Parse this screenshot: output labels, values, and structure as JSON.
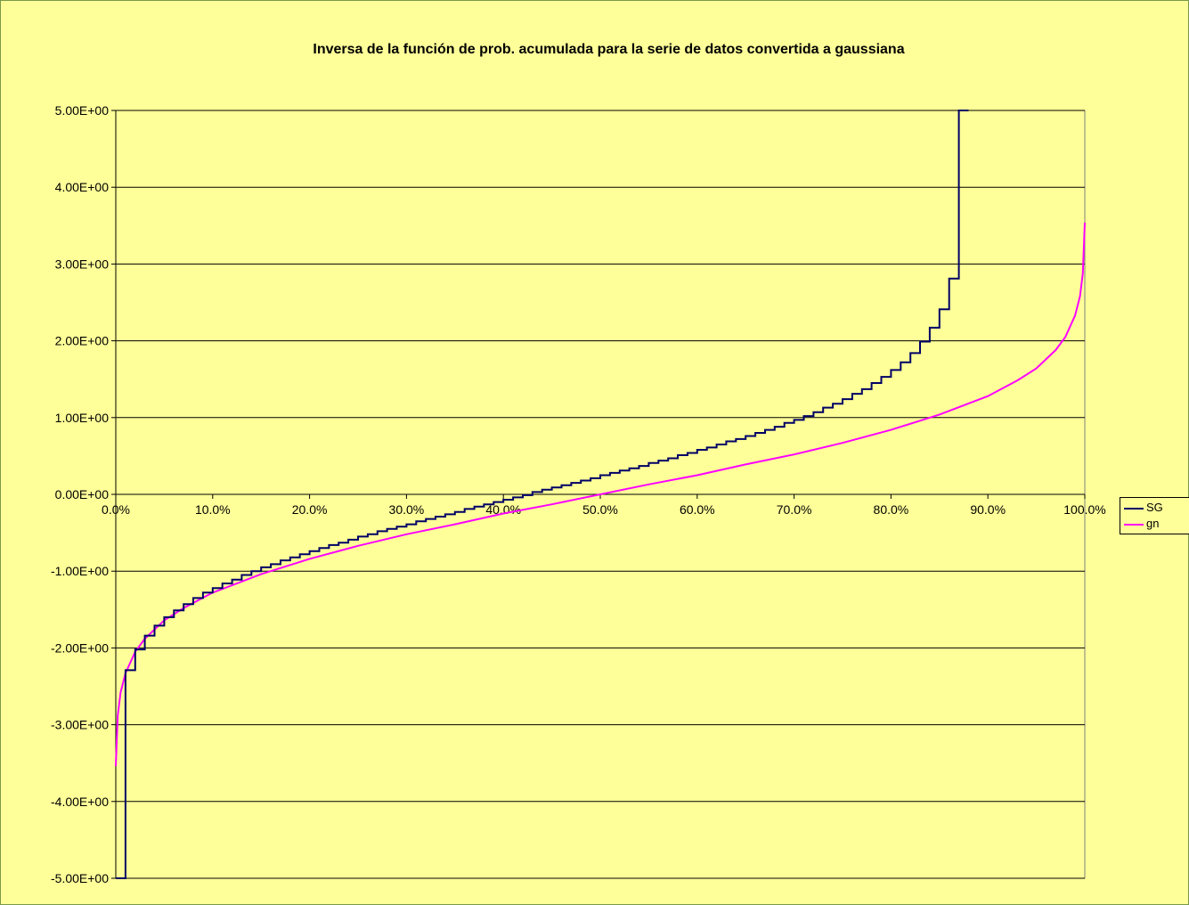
{
  "chart_data": {
    "type": "line",
    "title": "Inversa de la función de prob. acumulada para la serie de datos convertida a gaussiana",
    "xlabel": "",
    "ylabel": "",
    "xlim": [
      0,
      1
    ],
    "ylim": [
      -5,
      5
    ],
    "x_ticks": [
      "0.0%",
      "10.0%",
      "20.0%",
      "30.0%",
      "40.0%",
      "50.0%",
      "60.0%",
      "70.0%",
      "80.0%",
      "90.0%",
      "100.0%"
    ],
    "y_ticks": [
      "5.00E+00",
      "4.00E+00",
      "3.00E+00",
      "2.00E+00",
      "1.00E+00",
      "0.00E+00",
      "-1.00E+00",
      "-2.00E+00",
      "-3.00E+00",
      "-4.00E+00",
      "-5.00E+00"
    ],
    "grid": "horizontal",
    "legend_position": "right",
    "series": [
      {
        "name": "SG",
        "color": "#000066",
        "style": "step",
        "points": [
          [
            0.0,
            -5.0
          ],
          [
            0.01,
            -5.0
          ],
          [
            0.01,
            -2.29
          ],
          [
            0.02,
            -2.29
          ],
          [
            0.02,
            -2.02
          ],
          [
            0.03,
            -2.02
          ],
          [
            0.03,
            -1.84
          ],
          [
            0.04,
            -1.84
          ],
          [
            0.04,
            -1.71
          ],
          [
            0.05,
            -1.71
          ],
          [
            0.05,
            -1.6
          ],
          [
            0.06,
            -1.6
          ],
          [
            0.06,
            -1.51
          ],
          [
            0.07,
            -1.51
          ],
          [
            0.07,
            -1.43
          ],
          [
            0.08,
            -1.43
          ],
          [
            0.08,
            -1.35
          ],
          [
            0.09,
            -1.35
          ],
          [
            0.09,
            -1.28
          ],
          [
            0.1,
            -1.28
          ],
          [
            0.1,
            -1.22
          ],
          [
            0.11,
            -1.22
          ],
          [
            0.11,
            -1.16
          ],
          [
            0.12,
            -1.16
          ],
          [
            0.12,
            -1.11
          ],
          [
            0.13,
            -1.11
          ],
          [
            0.13,
            -1.05
          ],
          [
            0.14,
            -1.05
          ],
          [
            0.14,
            -1.0
          ],
          [
            0.15,
            -1.0
          ],
          [
            0.15,
            -0.95
          ],
          [
            0.16,
            -0.95
          ],
          [
            0.16,
            -0.91
          ],
          [
            0.17,
            -0.91
          ],
          [
            0.17,
            -0.86
          ],
          [
            0.18,
            -0.86
          ],
          [
            0.18,
            -0.82
          ],
          [
            0.19,
            -0.82
          ],
          [
            0.19,
            -0.78
          ],
          [
            0.2,
            -0.78
          ],
          [
            0.2,
            -0.74
          ],
          [
            0.21,
            -0.74
          ],
          [
            0.21,
            -0.7
          ],
          [
            0.22,
            -0.7
          ],
          [
            0.22,
            -0.66
          ],
          [
            0.23,
            -0.66
          ],
          [
            0.23,
            -0.63
          ],
          [
            0.24,
            -0.63
          ],
          [
            0.24,
            -0.59
          ],
          [
            0.25,
            -0.59
          ],
          [
            0.25,
            -0.55
          ],
          [
            0.26,
            -0.55
          ],
          [
            0.26,
            -0.52
          ],
          [
            0.27,
            -0.52
          ],
          [
            0.27,
            -0.48
          ],
          [
            0.28,
            -0.48
          ],
          [
            0.28,
            -0.45
          ],
          [
            0.29,
            -0.45
          ],
          [
            0.29,
            -0.42
          ],
          [
            0.3,
            -0.42
          ],
          [
            0.3,
            -0.39
          ],
          [
            0.31,
            -0.39
          ],
          [
            0.31,
            -0.35
          ],
          [
            0.32,
            -0.35
          ],
          [
            0.32,
            -0.32
          ],
          [
            0.33,
            -0.32
          ],
          [
            0.33,
            -0.29
          ],
          [
            0.34,
            -0.29
          ],
          [
            0.34,
            -0.26
          ],
          [
            0.35,
            -0.26
          ],
          [
            0.35,
            -0.23
          ],
          [
            0.36,
            -0.23
          ],
          [
            0.36,
            -0.19
          ],
          [
            0.37,
            -0.19
          ],
          [
            0.37,
            -0.16
          ],
          [
            0.38,
            -0.16
          ],
          [
            0.38,
            -0.13
          ],
          [
            0.39,
            -0.13
          ],
          [
            0.39,
            -0.1
          ],
          [
            0.4,
            -0.1
          ],
          [
            0.4,
            -0.07
          ],
          [
            0.41,
            -0.07
          ],
          [
            0.41,
            -0.04
          ],
          [
            0.42,
            -0.04
          ],
          [
            0.42,
            -0.01
          ],
          [
            0.43,
            -0.01
          ],
          [
            0.43,
            0.03
          ],
          [
            0.44,
            0.03
          ],
          [
            0.44,
            0.06
          ],
          [
            0.45,
            0.06
          ],
          [
            0.45,
            0.09
          ],
          [
            0.46,
            0.09
          ],
          [
            0.46,
            0.12
          ],
          [
            0.47,
            0.12
          ],
          [
            0.47,
            0.15
          ],
          [
            0.48,
            0.15
          ],
          [
            0.48,
            0.18
          ],
          [
            0.49,
            0.18
          ],
          [
            0.49,
            0.21
          ],
          [
            0.5,
            0.21
          ],
          [
            0.5,
            0.25
          ],
          [
            0.51,
            0.25
          ],
          [
            0.51,
            0.28
          ],
          [
            0.52,
            0.28
          ],
          [
            0.52,
            0.31
          ],
          [
            0.53,
            0.31
          ],
          [
            0.53,
            0.34
          ],
          [
            0.54,
            0.34
          ],
          [
            0.54,
            0.37
          ],
          [
            0.55,
            0.37
          ],
          [
            0.55,
            0.41
          ],
          [
            0.56,
            0.41
          ],
          [
            0.56,
            0.44
          ],
          [
            0.57,
            0.44
          ],
          [
            0.57,
            0.47
          ],
          [
            0.58,
            0.47
          ],
          [
            0.58,
            0.51
          ],
          [
            0.59,
            0.51
          ],
          [
            0.59,
            0.54
          ],
          [
            0.6,
            0.54
          ],
          [
            0.6,
            0.58
          ],
          [
            0.61,
            0.58
          ],
          [
            0.61,
            0.61
          ],
          [
            0.62,
            0.61
          ],
          [
            0.62,
            0.65
          ],
          [
            0.63,
            0.65
          ],
          [
            0.63,
            0.69
          ],
          [
            0.64,
            0.69
          ],
          [
            0.64,
            0.72
          ],
          [
            0.65,
            0.72
          ],
          [
            0.65,
            0.76
          ],
          [
            0.66,
            0.76
          ],
          [
            0.66,
            0.8
          ],
          [
            0.67,
            0.8
          ],
          [
            0.67,
            0.84
          ],
          [
            0.68,
            0.84
          ],
          [
            0.68,
            0.88
          ],
          [
            0.69,
            0.88
          ],
          [
            0.69,
            0.93
          ],
          [
            0.7,
            0.93
          ],
          [
            0.7,
            0.97
          ],
          [
            0.71,
            0.97
          ],
          [
            0.71,
            1.02
          ],
          [
            0.72,
            1.02
          ],
          [
            0.72,
            1.07
          ],
          [
            0.73,
            1.07
          ],
          [
            0.73,
            1.13
          ],
          [
            0.74,
            1.13
          ],
          [
            0.74,
            1.18
          ],
          [
            0.75,
            1.18
          ],
          [
            0.75,
            1.24
          ],
          [
            0.76,
            1.24
          ],
          [
            0.76,
            1.31
          ],
          [
            0.77,
            1.31
          ],
          [
            0.77,
            1.37
          ],
          [
            0.78,
            1.37
          ],
          [
            0.78,
            1.45
          ],
          [
            0.79,
            1.45
          ],
          [
            0.79,
            1.53
          ],
          [
            0.8,
            1.53
          ],
          [
            0.8,
            1.62
          ],
          [
            0.81,
            1.62
          ],
          [
            0.81,
            1.72
          ],
          [
            0.82,
            1.72
          ],
          [
            0.82,
            1.84
          ],
          [
            0.83,
            1.84
          ],
          [
            0.83,
            1.99
          ],
          [
            0.84,
            1.99
          ],
          [
            0.84,
            2.17
          ],
          [
            0.85,
            2.17
          ],
          [
            0.85,
            2.41
          ],
          [
            0.86,
            2.41
          ],
          [
            0.86,
            2.81
          ],
          [
            0.87,
            2.81
          ],
          [
            0.87,
            5.0
          ],
          [
            0.88,
            5.0
          ]
        ]
      },
      {
        "name": "gn",
        "color": "#ff00ff",
        "style": "smooth",
        "points": [
          [
            0.0,
            -3.54
          ],
          [
            0.002,
            -2.88
          ],
          [
            0.005,
            -2.58
          ],
          [
            0.01,
            -2.33
          ],
          [
            0.02,
            -2.05
          ],
          [
            0.03,
            -1.88
          ],
          [
            0.05,
            -1.64
          ],
          [
            0.07,
            -1.48
          ],
          [
            0.1,
            -1.28
          ],
          [
            0.15,
            -1.04
          ],
          [
            0.2,
            -0.84
          ],
          [
            0.25,
            -0.67
          ],
          [
            0.3,
            -0.52
          ],
          [
            0.35,
            -0.39
          ],
          [
            0.4,
            -0.25
          ],
          [
            0.45,
            -0.13
          ],
          [
            0.5,
            0.0
          ],
          [
            0.55,
            0.13
          ],
          [
            0.6,
            0.25
          ],
          [
            0.65,
            0.39
          ],
          [
            0.7,
            0.52
          ],
          [
            0.75,
            0.67
          ],
          [
            0.8,
            0.84
          ],
          [
            0.85,
            1.04
          ],
          [
            0.9,
            1.28
          ],
          [
            0.93,
            1.48
          ],
          [
            0.95,
            1.64
          ],
          [
            0.97,
            1.88
          ],
          [
            0.98,
            2.05
          ],
          [
            0.99,
            2.33
          ],
          [
            0.995,
            2.58
          ],
          [
            0.998,
            2.88
          ],
          [
            1.0,
            3.54
          ]
        ]
      }
    ]
  }
}
